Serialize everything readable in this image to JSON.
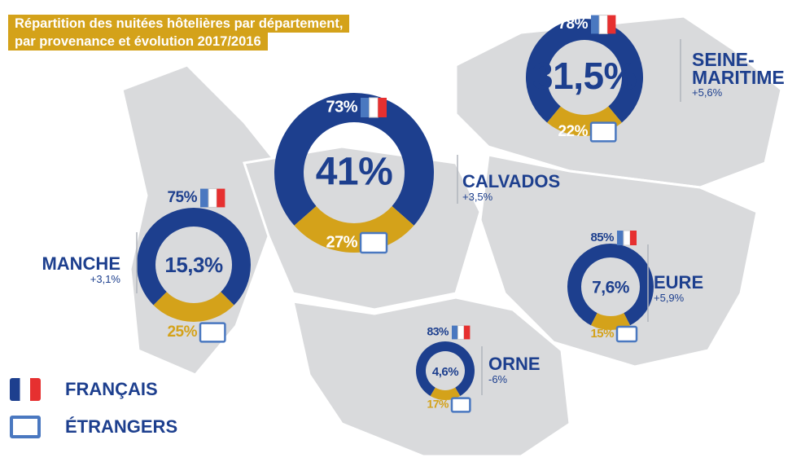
{
  "title": [
    "Répartition des nuitées hôtelières par département,",
    "par provenance et évolution 2017/2016"
  ],
  "legend": [
    {
      "name": "FRANÇAIS",
      "color": "#1d3f8e"
    },
    {
      "name": "ÉTRANGERS",
      "color": "#d4a21a"
    }
  ],
  "chart_data": [
    {
      "type": "donut",
      "title": "SEINE-MARITIME",
      "center_label": "31,5%",
      "change": "+5,6%",
      "values": [
        78,
        22
      ],
      "value_labels": [
        "78%",
        "22%"
      ]
    },
    {
      "type": "donut",
      "title": "CALVADOS",
      "center_label": "41%",
      "change": "+3,5%",
      "values": [
        73,
        27
      ],
      "value_labels": [
        "73%",
        "27%"
      ]
    },
    {
      "type": "donut",
      "title": "MANCHE",
      "center_label": "15,3%",
      "change": "+3,1%",
      "values": [
        75,
        25
      ],
      "value_labels": [
        "75%",
        "25%"
      ]
    },
    {
      "type": "donut",
      "title": "EURE",
      "center_label": "7,6%",
      "change": "+5,9%",
      "values": [
        85,
        15
      ],
      "value_labels": [
        "85%",
        "15%"
      ]
    },
    {
      "type": "donut",
      "title": "ORNE",
      "center_label": "4,6%",
      "change": "-6%",
      "values": [
        83,
        17
      ],
      "value_labels": [
        "83%",
        "17%"
      ]
    }
  ]
}
